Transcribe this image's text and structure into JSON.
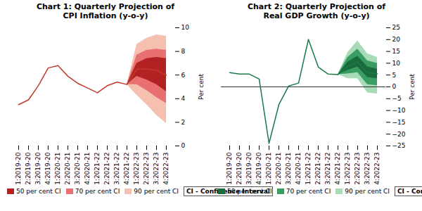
{
  "chart_data": [
    {
      "type": "fan",
      "title": "Chart 1: Quarterly Projection of\nCPI Inflation (y-o-y)",
      "y_label": "Per cent",
      "ylim": [
        0,
        10
      ],
      "yticks": [
        0,
        2,
        4,
        6,
        8,
        10
      ],
      "categories": [
        "Q1:2019-20",
        "Q2:2019-20",
        "Q3:2019-20",
        "Q4:2019-20",
        "Q1:2020-21",
        "Q2:2020-21",
        "Q3:2020-21",
        "Q4:2020-21",
        "Q1:2021-22",
        "Q2:2021-22",
        "Q3:2021-22",
        "Q4:2021-22",
        "Q1:2022-23",
        "Q2:2022-23",
        "Q3:2022-23",
        "Q4:2022-23"
      ],
      "legend": "bottom",
      "annotation": "CI - Confidence Interval",
      "series": [
        {
          "type": "line",
          "color": "#c0392b",
          "values": [
            3.5,
            3.9,
            5.1,
            6.6,
            6.8,
            5.9,
            5.3,
            4.9,
            4.5,
            5.1,
            5.4,
            5.2,
            null,
            null,
            null,
            null
          ]
        },
        {
          "type": "line",
          "color": "#c0392b",
          "values": [
            null,
            null,
            null,
            null,
            null,
            null,
            null,
            null,
            null,
            null,
            null,
            5.2,
            6.5,
            6.5,
            6.4,
            6.0
          ]
        },
        {
          "type": "band",
          "name": "50 per cent CI",
          "color": "#b22222",
          "lower": [
            null,
            null,
            null,
            null,
            null,
            null,
            null,
            null,
            null,
            null,
            null,
            5.2,
            5.9,
            5.6,
            5.2,
            4.6
          ],
          "upper": [
            null,
            null,
            null,
            null,
            null,
            null,
            null,
            null,
            null,
            null,
            null,
            5.2,
            7.0,
            7.4,
            7.5,
            7.4
          ]
        },
        {
          "type": "band",
          "name": "70 per cent CI",
          "color": "#e87070",
          "lower": [
            null,
            null,
            null,
            null,
            null,
            null,
            null,
            null,
            null,
            null,
            null,
            5.2,
            5.2,
            4.7,
            4.1,
            3.6
          ],
          "upper": [
            null,
            null,
            null,
            null,
            null,
            null,
            null,
            null,
            null,
            null,
            null,
            5.2,
            7.7,
            8.1,
            8.2,
            8.1
          ]
        },
        {
          "type": "band",
          "name": "90 per cent CI",
          "color": "#f5c0b0",
          "lower": [
            null,
            null,
            null,
            null,
            null,
            null,
            null,
            null,
            null,
            null,
            null,
            5.2,
            4.3,
            3.5,
            2.6,
            1.9
          ],
          "upper": [
            null,
            null,
            null,
            null,
            null,
            null,
            null,
            null,
            null,
            null,
            null,
            5.2,
            8.6,
            9.1,
            9.4,
            9.3
          ]
        }
      ]
    },
    {
      "type": "fan",
      "title": "Chart 2: Quarterly Projection of\nReal GDP Growth (y-o-y)",
      "y_label": "Per cent",
      "ylim": [
        -25,
        25
      ],
      "yticks": [
        -25,
        -20,
        -15,
        -10,
        -5,
        0,
        5,
        10,
        15,
        20,
        25
      ],
      "categories": [
        "Q1:2019-20",
        "Q2:2019-20",
        "Q3:2019-20",
        "Q4:2019-20",
        "Q1:2020-21",
        "Q2:2020-21",
        "Q3:2020-21",
        "Q4:2020-21",
        "Q1:2021-22",
        "Q2:2021-22",
        "Q3:2021-22",
        "Q4:2021-22",
        "Q1:2022-23",
        "Q2:2022-23",
        "Q3:2022-23",
        "Q4:2022-23"
      ],
      "legend": "bottom",
      "annotation": "CI - Confidence Interval",
      "hline": 0,
      "series": [
        {
          "type": "line",
          "color": "#1a7a4a",
          "values": [
            6.0,
            5.4,
            5.4,
            3.3,
            -23.9,
            -7.5,
            0.4,
            1.6,
            20.1,
            8.4,
            5.4,
            5.2,
            null,
            null,
            null,
            null
          ]
        },
        {
          "type": "line",
          "color": "#1a7a4a",
          "values": [
            null,
            null,
            null,
            null,
            null,
            null,
            null,
            null,
            null,
            null,
            null,
            5.2,
            8.8,
            10.5,
            6.0,
            5.5
          ]
        },
        {
          "type": "band",
          "name": "50 per cent CI",
          "color": "#1a6b3c",
          "lower": [
            null,
            null,
            null,
            null,
            null,
            null,
            null,
            null,
            null,
            null,
            null,
            5.2,
            7.0,
            8.5,
            4.0,
            3.5
          ],
          "upper": [
            null,
            null,
            null,
            null,
            null,
            null,
            null,
            null,
            null,
            null,
            null,
            5.2,
            10.5,
            13.0,
            8.5,
            7.5
          ]
        },
        {
          "type": "band",
          "name": "70 per cent CI",
          "color": "#3a9e62",
          "lower": [
            null,
            null,
            null,
            null,
            null,
            null,
            null,
            null,
            null,
            null,
            null,
            5.2,
            5.5,
            6.0,
            1.0,
            0.5
          ],
          "upper": [
            null,
            null,
            null,
            null,
            null,
            null,
            null,
            null,
            null,
            null,
            null,
            5.2,
            12.5,
            16.0,
            11.0,
            10.0
          ]
        },
        {
          "type": "band",
          "name": "90 per cent CI",
          "color": "#a8dbb8",
          "lower": [
            null,
            null,
            null,
            null,
            null,
            null,
            null,
            null,
            null,
            null,
            null,
            5.2,
            3.5,
            3.5,
            -2.5,
            -3.0
          ],
          "upper": [
            null,
            null,
            null,
            null,
            null,
            null,
            null,
            null,
            null,
            null,
            null,
            5.2,
            14.5,
            19.5,
            14.0,
            12.5
          ]
        }
      ]
    }
  ]
}
